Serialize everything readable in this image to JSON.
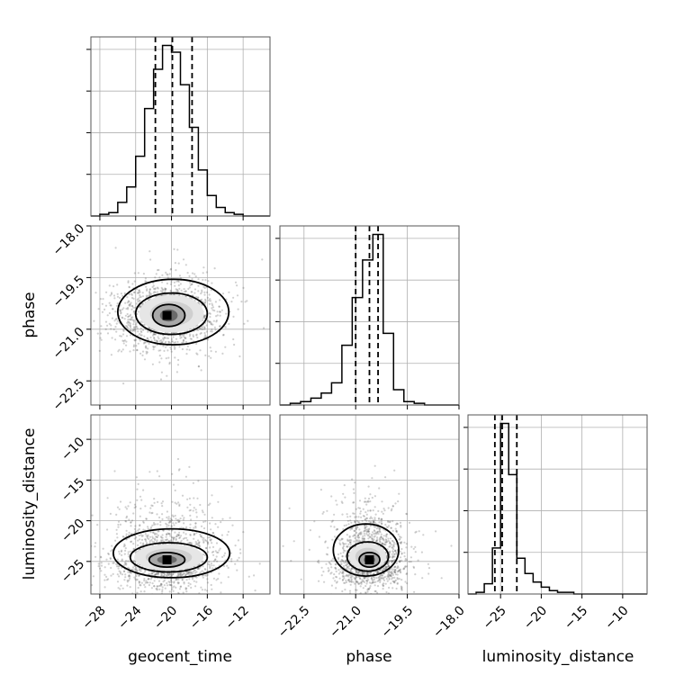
{
  "chart_data": {
    "type": "corner",
    "parameters": [
      {
        "name": "geocent_time",
        "range": [
          -29,
          -9
        ],
        "ticks": [
          {
            "v": -28,
            "label": "−28"
          },
          {
            "v": -24,
            "label": "−24"
          },
          {
            "v": -20,
            "label": "−20"
          },
          {
            "v": -16,
            "label": "−16"
          },
          {
            "v": -12,
            "label": "−12"
          }
        ],
        "quantiles": [
          -21.8,
          -19.9,
          -17.7
        ]
      },
      {
        "name": "phase",
        "range": [
          -23.2,
          -18.0
        ],
        "ticks": [
          {
            "v": -22.5,
            "label": "−22.5"
          },
          {
            "v": -21.0,
            "label": "−21.0"
          },
          {
            "v": -19.5,
            "label": "−19.5"
          },
          {
            "v": -18.0,
            "label": "−18.0"
          }
        ],
        "quantiles": [
          -21.0,
          -20.6,
          -20.35
        ]
      },
      {
        "name": "luminosity_distance",
        "range": [
          -29,
          -7
        ],
        "ticks": [
          {
            "v": -25,
            "label": "−25"
          },
          {
            "v": -20,
            "label": "−20"
          },
          {
            "v": -15,
            "label": "−15"
          },
          {
            "v": -10,
            "label": "−10"
          }
        ],
        "quantiles": [
          -25.7,
          -24.8,
          -23.0
        ]
      }
    ],
    "histograms": [
      {
        "param": "geocent_time",
        "bin_edges": [
          -29,
          -28,
          -27,
          -26,
          -25,
          -24,
          -23,
          -22,
          -21,
          -20,
          -19,
          -18,
          -17,
          -16,
          -15,
          -14,
          -13,
          -12,
          -11,
          -10,
          -9
        ],
        "counts": [
          0,
          1,
          2,
          8,
          17,
          35,
          63,
          86,
          100,
          96,
          77,
          52,
          27,
          12,
          5,
          2,
          1,
          0,
          0,
          0
        ]
      },
      {
        "param": "phase",
        "bin_edges": [
          -23.2,
          -22.9,
          -22.6,
          -22.3,
          -22.0,
          -21.7,
          -21.4,
          -21.1,
          -20.8,
          -20.5,
          -20.2,
          -19.9,
          -19.6,
          -19.3,
          -19.0,
          -18.7,
          -18.4,
          -18.0
        ],
        "counts": [
          0,
          1,
          2,
          4,
          7,
          13,
          35,
          63,
          85,
          100,
          42,
          9,
          2,
          1,
          0,
          0,
          0
        ]
      },
      {
        "param": "luminosity_distance",
        "bin_edges": [
          -29,
          -28,
          -27,
          -26,
          -25,
          -24,
          -23,
          -22,
          -21,
          -20,
          -19,
          -18,
          -17,
          -16,
          -15,
          -14,
          -13,
          -12,
          -11,
          -10,
          -9,
          -8,
          -7
        ],
        "counts": [
          0,
          1,
          6,
          27,
          100,
          70,
          21,
          12,
          7,
          4,
          2,
          1,
          1,
          0,
          0,
          0,
          0,
          0,
          0,
          0,
          0,
          0
        ]
      }
    ],
    "joint": [
      {
        "x": "geocent_time",
        "y": "phase",
        "mode": {
          "x": -20.5,
          "y": -20.6
        },
        "spread": {
          "x": 3.0,
          "y": 0.5
        },
        "contours": [
          {
            "level": 0.39,
            "cx": -20.3,
            "cy": -20.6,
            "rx": 1.8,
            "ry": 0.32
          },
          {
            "level": 0.86,
            "cx": -20.0,
            "cy": -20.55,
            "rx": 4.0,
            "ry": 0.6
          },
          {
            "level": 0.99,
            "cx": -19.8,
            "cy": -20.5,
            "rx": 6.2,
            "ry": 0.95
          }
        ]
      },
      {
        "x": "geocent_time",
        "y": "luminosity_distance",
        "mode": {
          "x": -20.5,
          "y": -24.8
        },
        "spread": {
          "x": 3.0,
          "y": 1.8
        },
        "contours": [
          {
            "level": 0.39,
            "cx": -20.5,
            "cy": -24.8,
            "rx": 2.0,
            "ry": 0.9
          },
          {
            "level": 0.86,
            "cx": -20.3,
            "cy": -24.5,
            "rx": 4.3,
            "ry": 1.8
          },
          {
            "level": 0.99,
            "cx": -20.0,
            "cy": -24.0,
            "rx": 6.5,
            "ry": 3.0
          }
        ]
      },
      {
        "x": "phase",
        "y": "luminosity_distance",
        "mode": {
          "x": -20.6,
          "y": -24.8
        },
        "spread": {
          "x": 0.5,
          "y": 1.8
        },
        "contours": [
          {
            "level": 0.39,
            "cx": -20.6,
            "cy": -24.8,
            "rx": 0.3,
            "ry": 0.9
          },
          {
            "level": 0.86,
            "cx": -20.65,
            "cy": -24.4,
            "rx": 0.6,
            "ry": 1.8
          },
          {
            "level": 0.99,
            "cx": -20.7,
            "cy": -23.6,
            "rx": 0.95,
            "ry": 3.2
          }
        ]
      }
    ]
  }
}
